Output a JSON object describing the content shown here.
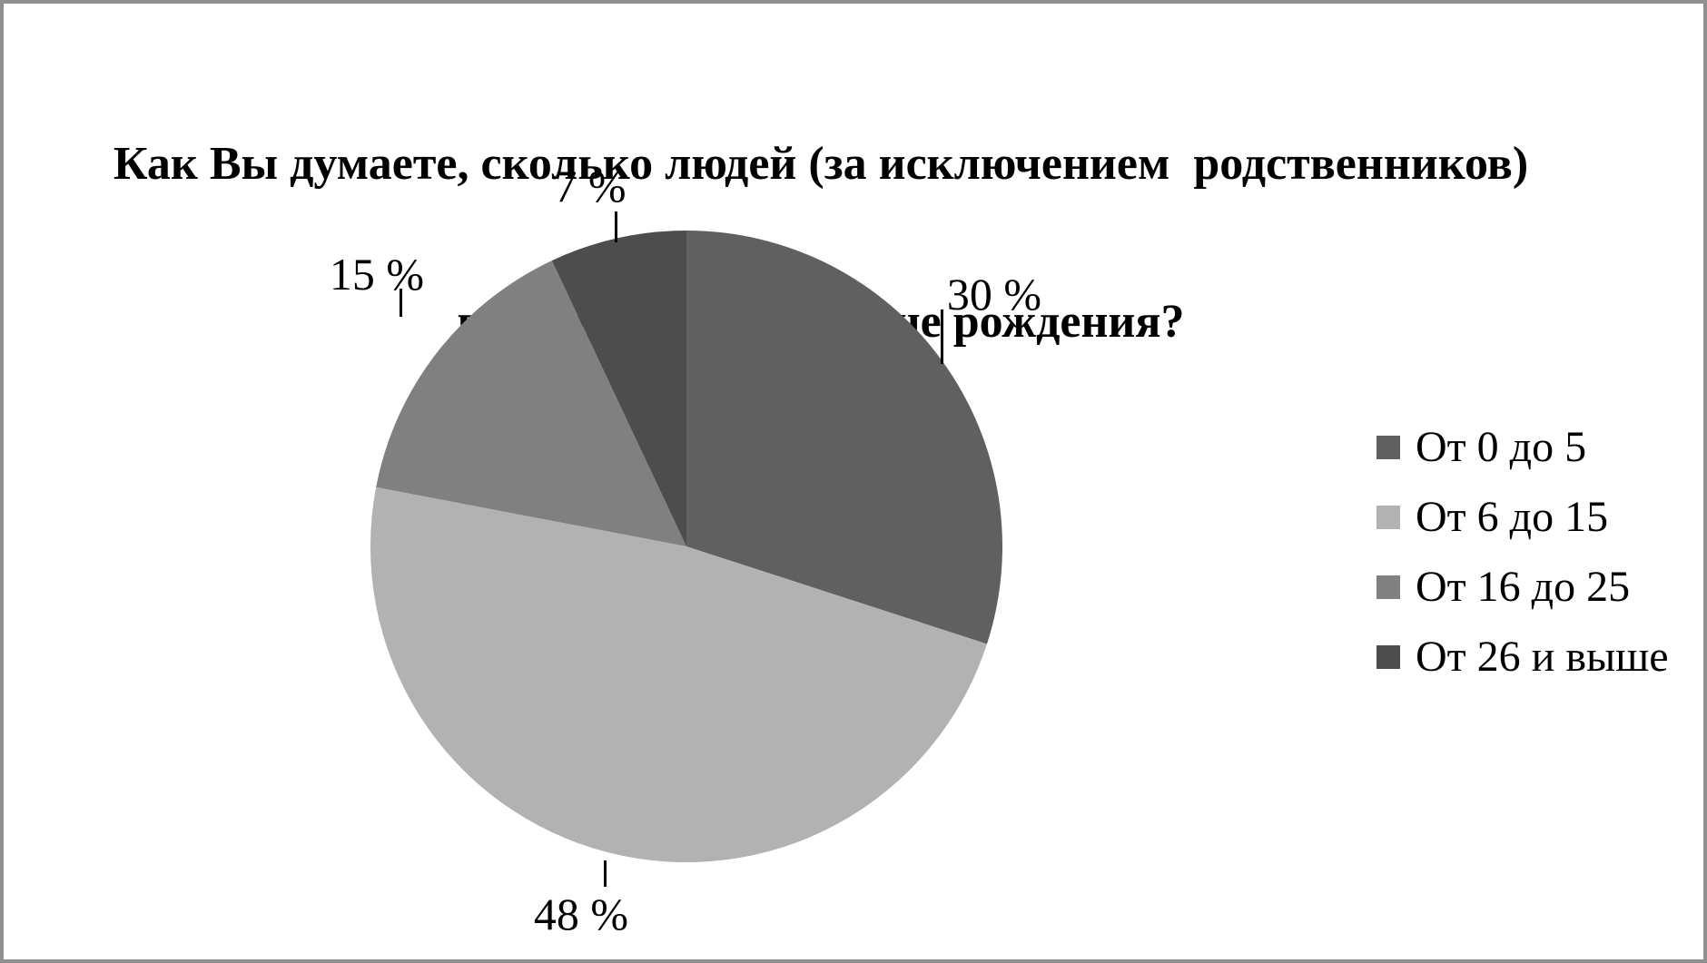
{
  "frame": {
    "border_color": "#909090",
    "background_color": "#FFFFFF"
  },
  "title": {
    "line1": "Как Вы думаете, сколько людей (за исключением  родственников)",
    "line2": "вспомнят о Вашем дне рождения?"
  },
  "chart_data": {
    "type": "pie",
    "title": "Как Вы думаете, сколько людей (за исключением родственников) вспомнят о Вашем дне рождения?",
    "start_angle_deg": 0,
    "direction": "clockwise",
    "legend_position": "right",
    "slices": [
      {
        "label": "От 0 до 5",
        "value_pct": 30,
        "display": "30 %",
        "color": "#606060"
      },
      {
        "label": "От 6 до 15",
        "value_pct": 48,
        "display": "48 %",
        "color": "#B2B2B2"
      },
      {
        "label": "От 16 до 25",
        "value_pct": 15,
        "display": "15 %",
        "color": "#808080"
      },
      {
        "label": "От 26 и выше",
        "value_pct": 7,
        "display": "7 %",
        "color": "#4D4D4D"
      }
    ]
  }
}
